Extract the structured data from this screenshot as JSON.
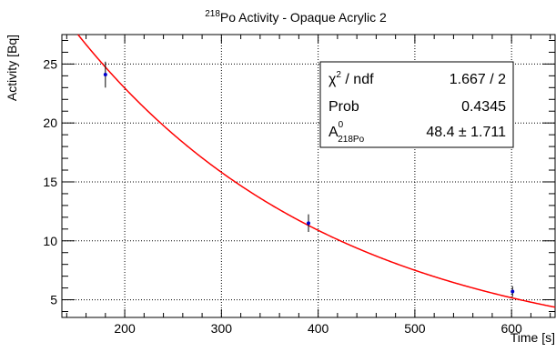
{
  "chart_data": {
    "type": "scatter",
    "title": {
      "sup": "218",
      "main": "Po Activity - Opaque Acrylic 2"
    },
    "xlabel": "Time [s]",
    "ylabel": "Activity [Bq]",
    "xlim": [
      135,
      645
    ],
    "ylim": [
      3.5,
      27.5
    ],
    "xticks": [
      200,
      300,
      400,
      500,
      600
    ],
    "yticks": [
      5,
      10,
      15,
      20,
      25
    ],
    "grid": true,
    "points": [
      {
        "x": 180,
        "y": 24.1,
        "yerr": 1.1
      },
      {
        "x": 390,
        "y": 11.5,
        "yerr": 0.75
      },
      {
        "x": 601,
        "y": 5.7,
        "yerr": 0.45
      }
    ],
    "fit": {
      "type": "exponential",
      "A0": 48.4,
      "halflife_s": 185.9,
      "color": "#ff0000"
    },
    "marker_color": "#0000cc",
    "stats": {
      "row1": {
        "label_base": "χ",
        "label_sup": "2",
        "label_rest": " / ndf",
        "value": "1.667 / 2"
      },
      "row2": {
        "label": "Prob",
        "value": "0.4345"
      },
      "row3": {
        "label_base": "A",
        "label_sup": "0",
        "label_sub": "218Po",
        "value": "48.4 ± 1.711"
      }
    }
  }
}
